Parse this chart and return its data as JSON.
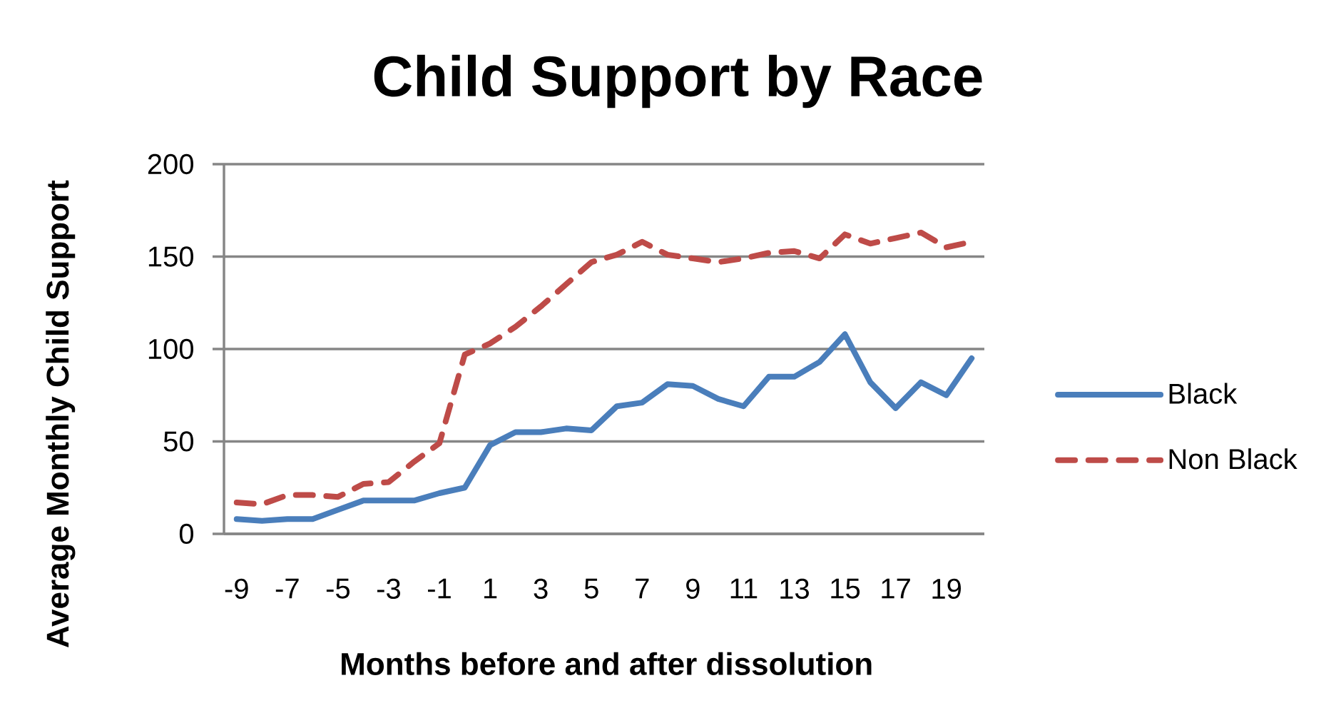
{
  "chart_data": {
    "type": "line",
    "title": "Child Support by Race",
    "xlabel": "Months before and after dissolution",
    "ylabel": "Average Monthly Child Support",
    "categories": [
      "-9",
      null,
      "-7",
      null,
      "-5",
      null,
      "-3",
      null,
      "-1",
      null,
      "1",
      null,
      "3",
      null,
      "5",
      null,
      "7",
      null,
      "9",
      null,
      "11",
      null,
      "13",
      null,
      "15",
      null,
      "17",
      null,
      "19",
      null
    ],
    "series": [
      {
        "name": "Black",
        "color": "#4a7ebb",
        "line_style": "solid",
        "values": [
          8,
          7,
          8,
          8,
          13,
          18,
          18,
          18,
          22,
          25,
          48,
          55,
          55,
          57,
          56,
          69,
          71,
          81,
          80,
          73,
          69,
          85,
          85,
          93,
          108,
          82,
          68,
          82,
          75,
          95
        ]
      },
      {
        "name": "Non Black",
        "color": "#be4b48",
        "line_style": "dashed",
        "values": [
          17,
          16,
          21,
          21,
          20,
          27,
          28,
          39,
          49,
          97,
          103,
          112,
          123,
          135,
          147,
          151,
          158,
          151,
          149,
          147,
          149,
          152,
          153,
          149,
          162,
          157,
          160,
          163,
          155,
          158
        ]
      }
    ],
    "ylim": [
      0,
      200
    ],
    "yticks": [
      0,
      50,
      100,
      150,
      200
    ],
    "grid": "y",
    "legend": "right"
  }
}
